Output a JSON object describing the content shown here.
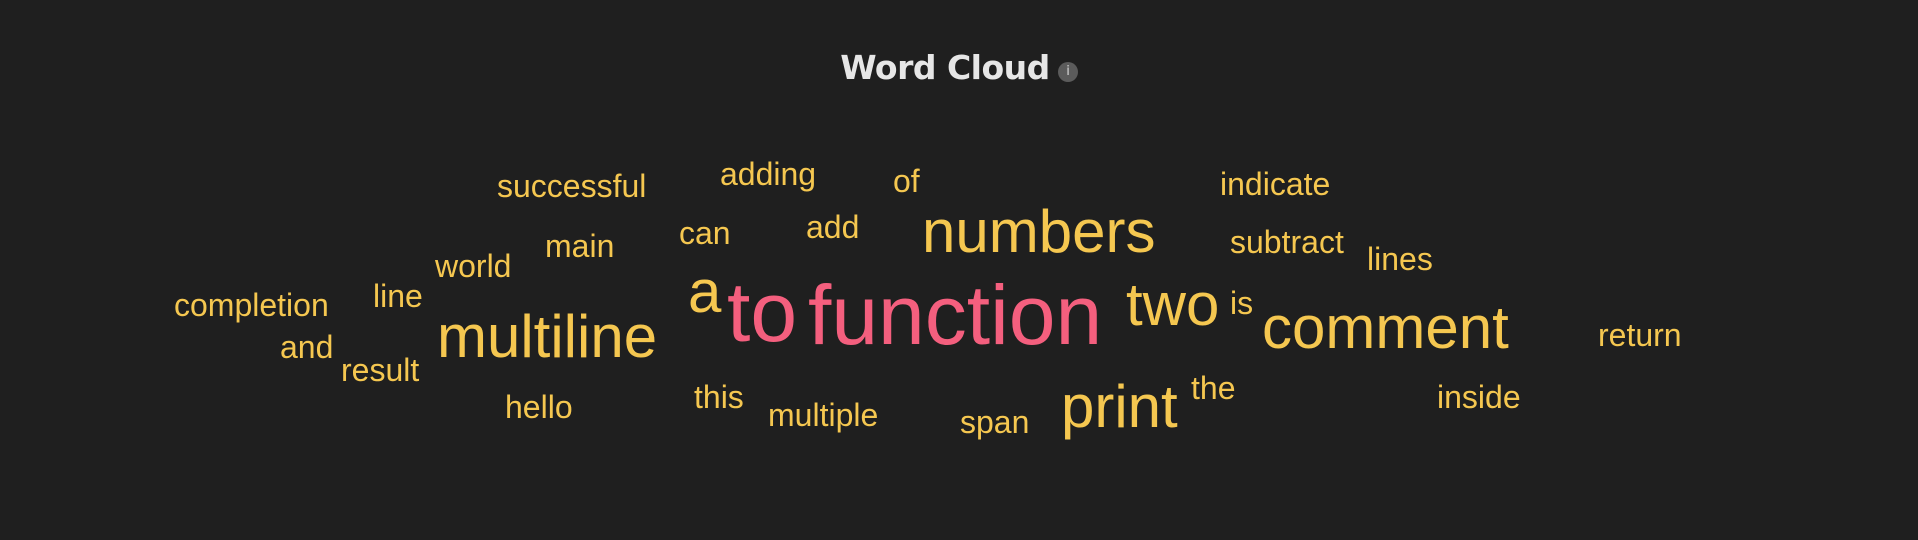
{
  "title": "Word Cloud",
  "info_icon": "info-icon",
  "colors": {
    "background": "#1f1f1f",
    "title": "#e6e6e6",
    "word_primary": "#f5c750",
    "word_accent": "#f45f7e"
  },
  "words": [
    {
      "text": "successful",
      "weight": 1,
      "color": "primary"
    },
    {
      "text": "adding",
      "weight": 1,
      "color": "primary"
    },
    {
      "text": "of",
      "weight": 1,
      "color": "primary"
    },
    {
      "text": "indicate",
      "weight": 1,
      "color": "primary"
    },
    {
      "text": "main",
      "weight": 1,
      "color": "primary"
    },
    {
      "text": "can",
      "weight": 1,
      "color": "primary"
    },
    {
      "text": "add",
      "weight": 1,
      "color": "primary"
    },
    {
      "text": "numbers",
      "weight": 3,
      "color": "primary"
    },
    {
      "text": "subtract",
      "weight": 1,
      "color": "primary"
    },
    {
      "text": "lines",
      "weight": 1,
      "color": "primary"
    },
    {
      "text": "world",
      "weight": 1,
      "color": "primary"
    },
    {
      "text": "completion",
      "weight": 1,
      "color": "primary"
    },
    {
      "text": "line",
      "weight": 1,
      "color": "primary"
    },
    {
      "text": "a",
      "weight": 3,
      "color": "primary"
    },
    {
      "text": "to",
      "weight": 5,
      "color": "accent"
    },
    {
      "text": "function",
      "weight": 6,
      "color": "accent"
    },
    {
      "text": "two",
      "weight": 3,
      "color": "primary"
    },
    {
      "text": "is",
      "weight": 1,
      "color": "primary"
    },
    {
      "text": "comment",
      "weight": 3,
      "color": "primary"
    },
    {
      "text": "return",
      "weight": 1,
      "color": "primary"
    },
    {
      "text": "multiline",
      "weight": 3,
      "color": "primary"
    },
    {
      "text": "and",
      "weight": 1,
      "color": "primary"
    },
    {
      "text": "result",
      "weight": 1,
      "color": "primary"
    },
    {
      "text": "hello",
      "weight": 1,
      "color": "primary"
    },
    {
      "text": "this",
      "weight": 1,
      "color": "primary"
    },
    {
      "text": "multiple",
      "weight": 1,
      "color": "primary"
    },
    {
      "text": "span",
      "weight": 1,
      "color": "primary"
    },
    {
      "text": "print",
      "weight": 3,
      "color": "primary"
    },
    {
      "text": "the",
      "weight": 1,
      "color": "primary"
    },
    {
      "text": "inside",
      "weight": 1,
      "color": "primary"
    }
  ]
}
